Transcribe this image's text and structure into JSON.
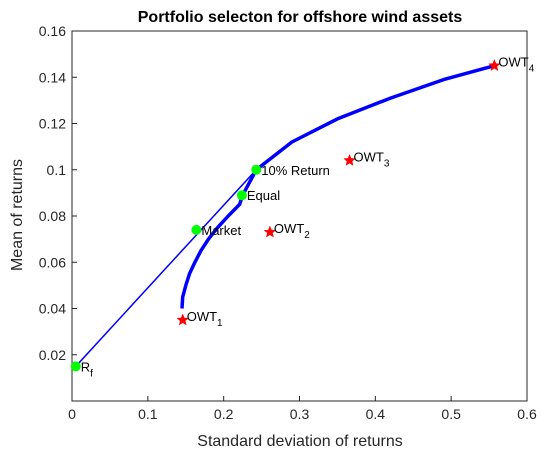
{
  "chart_data": {
    "type": "scatter",
    "title": "Portfolio selecton for offshore wind assets",
    "xlabel": "Standard deviation of returns",
    "ylabel": "Mean of returns",
    "xlim": [
      0,
      0.6
    ],
    "ylim": [
      0,
      0.16
    ],
    "xticks": [
      "0",
      "0.1",
      "0.2",
      "0.3",
      "0.4",
      "0.5",
      "0.6"
    ],
    "yticks": [
      "0.02",
      "0.04",
      "0.06",
      "0.08",
      "0.1",
      "0.12",
      "0.14",
      "0.16"
    ],
    "grid": false,
    "frontier": {
      "color": "#0000ff",
      "points": [
        [
          0.145,
          0.04
        ],
        [
          0.146,
          0.045
        ],
        [
          0.15,
          0.05
        ],
        [
          0.155,
          0.055
        ],
        [
          0.162,
          0.06
        ],
        [
          0.17,
          0.065
        ],
        [
          0.18,
          0.07
        ],
        [
          0.192,
          0.075
        ],
        [
          0.206,
          0.08
        ],
        [
          0.221,
          0.085
        ],
        [
          0.225,
          0.089
        ],
        [
          0.243,
          0.1
        ],
        [
          0.29,
          0.112
        ],
        [
          0.35,
          0.122
        ],
        [
          0.42,
          0.131
        ],
        [
          0.49,
          0.139
        ],
        [
          0.557,
          0.145
        ]
      ]
    },
    "cml": {
      "color": "#0000ff",
      "points": [
        [
          0.005,
          0.015
        ],
        [
          0.243,
          0.1
        ]
      ]
    },
    "assets": {
      "color": "#ff0000",
      "points": [
        {
          "x": 0.146,
          "y": 0.035,
          "label": "OWT",
          "sub": "1"
        },
        {
          "x": 0.261,
          "y": 0.073,
          "label": "OWT",
          "sub": "2"
        },
        {
          "x": 0.366,
          "y": 0.104,
          "label": "OWT",
          "sub": "3"
        },
        {
          "x": 0.557,
          "y": 0.145,
          "label": "OWT",
          "sub": "4"
        }
      ]
    },
    "portfolios": {
      "color": "#00ff00",
      "points": [
        {
          "x": 0.005,
          "y": 0.015,
          "label": "R",
          "sub": "f"
        },
        {
          "x": 0.164,
          "y": 0.074,
          "label": "Market",
          "sub": ""
        },
        {
          "x": 0.224,
          "y": 0.089,
          "label": "Equal",
          "sub": ""
        },
        {
          "x": 0.243,
          "y": 0.1,
          "label": "10% Return",
          "sub": ""
        }
      ]
    }
  }
}
